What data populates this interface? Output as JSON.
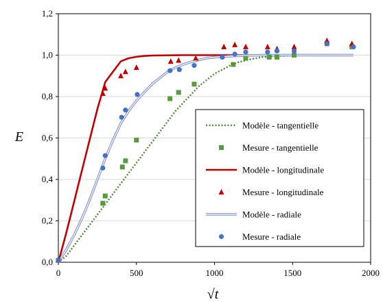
{
  "chart_data": {
    "type": "scatter",
    "title": "",
    "xlabel": "√t",
    "ylabel": "E",
    "xlim": [
      0,
      2000
    ],
    "ylim": [
      0,
      1.2
    ],
    "xticks": [
      "0",
      "500",
      "1000",
      "1500",
      "2000"
    ],
    "yticks": [
      "0,0",
      "0,2",
      "0,4",
      "0,6",
      "0,8",
      "1,0",
      "1,2"
    ],
    "legend_position": "inside-right",
    "series": [
      {
        "name": "Modèle - tangentielle",
        "kind": "line",
        "style": "dotted",
        "color": "#4a8a32",
        "x": [
          0,
          50,
          100,
          150,
          200,
          250,
          300,
          350,
          400,
          450,
          500,
          550,
          600,
          650,
          700,
          750,
          800,
          850,
          900,
          950,
          1000,
          1050,
          1100,
          1150,
          1200,
          1250,
          1300,
          1400,
          1500,
          1600,
          1700,
          1800,
          1890
        ],
        "y": [
          0,
          0.03,
          0.08,
          0.13,
          0.18,
          0.23,
          0.28,
          0.33,
          0.38,
          0.43,
          0.48,
          0.53,
          0.58,
          0.63,
          0.68,
          0.73,
          0.77,
          0.81,
          0.85,
          0.88,
          0.91,
          0.93,
          0.95,
          0.965,
          0.975,
          0.983,
          0.99,
          0.995,
          0.998,
          0.999,
          1.0,
          1.0,
          1.0
        ]
      },
      {
        "name": "Mesure - tangentielle",
        "kind": "points",
        "marker": "square",
        "color": "#5a9a3c",
        "x": [
          0,
          285,
          300,
          410,
          430,
          500,
          715,
          770,
          870,
          1120,
          1200,
          1350,
          1400,
          1510,
          1720,
          1880
        ],
        "y": [
          0.01,
          0.285,
          0.32,
          0.46,
          0.49,
          0.59,
          0.79,
          0.82,
          0.86,
          0.955,
          0.985,
          0.99,
          0.99,
          1.0,
          1.055,
          1.04
        ]
      },
      {
        "name": "Modèle - longitudinale",
        "kind": "line",
        "style": "solid",
        "color": "#c00000",
        "x": [
          0,
          50,
          100,
          150,
          200,
          250,
          300,
          350,
          400,
          450,
          500,
          550,
          600,
          700,
          800,
          1000,
          1200,
          1500,
          1890
        ],
        "y": [
          0,
          0.14,
          0.29,
          0.44,
          0.59,
          0.74,
          0.87,
          0.92,
          0.97,
          0.985,
          0.992,
          0.996,
          0.998,
          0.999,
          1.0,
          1.0,
          1.0,
          1.0,
          1.0
        ]
      },
      {
        "name": "Mesure - longitudinale",
        "kind": "points",
        "marker": "triangle",
        "color": "#c00000",
        "x": [
          0,
          285,
          300,
          400,
          430,
          500,
          720,
          770,
          880,
          1060,
          1130,
          1200,
          1340,
          1400,
          1510,
          1720,
          1880
        ],
        "y": [
          0.01,
          0.815,
          0.84,
          0.9,
          0.92,
          0.94,
          0.97,
          0.975,
          0.985,
          1.04,
          1.05,
          1.04,
          1.04,
          1.03,
          1.04,
          1.07,
          1.055
        ]
      },
      {
        "name": "Modèle - radiale",
        "kind": "line",
        "style": "double",
        "color": "#7f8fd0",
        "x": [
          0,
          50,
          100,
          150,
          200,
          250,
          300,
          350,
          400,
          450,
          500,
          550,
          600,
          650,
          700,
          750,
          800,
          850,
          900,
          950,
          1000,
          1100,
          1200,
          1300,
          1500,
          1700,
          1890
        ],
        "y": [
          0,
          0.06,
          0.13,
          0.21,
          0.3,
          0.4,
          0.5,
          0.59,
          0.67,
          0.73,
          0.78,
          0.82,
          0.86,
          0.89,
          0.92,
          0.94,
          0.955,
          0.967,
          0.977,
          0.985,
          0.99,
          0.995,
          0.998,
          1.0,
          1.0,
          1.0,
          1.0
        ]
      },
      {
        "name": "Mesure - radiale",
        "kind": "points",
        "marker": "circle",
        "color": "#4472c4",
        "x": [
          0,
          285,
          300,
          405,
          430,
          505,
          715,
          775,
          870,
          1050,
          1130,
          1200,
          1340,
          1400,
          1510,
          1720,
          1890
        ],
        "y": [
          0.01,
          0.455,
          0.515,
          0.7,
          0.735,
          0.81,
          0.925,
          0.93,
          0.95,
          0.99,
          1.005,
          1.015,
          1.015,
          1.02,
          1.02,
          1.055,
          1.04
        ]
      }
    ]
  }
}
